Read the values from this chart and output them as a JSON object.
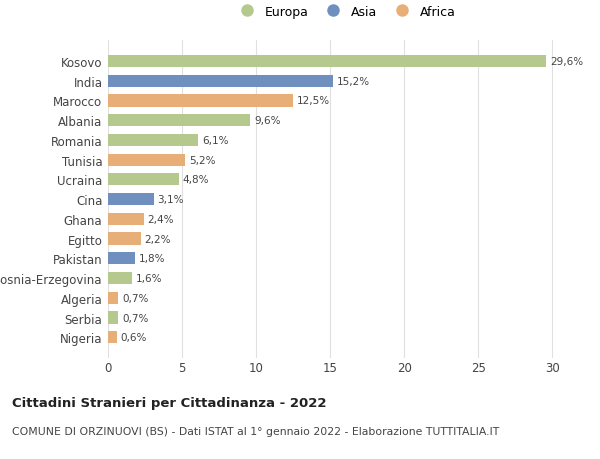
{
  "countries": [
    "Kosovo",
    "India",
    "Marocco",
    "Albania",
    "Romania",
    "Tunisia",
    "Ucraina",
    "Cina",
    "Ghana",
    "Egitto",
    "Pakistan",
    "Bosnia-Erzegovina",
    "Algeria",
    "Serbia",
    "Nigeria"
  ],
  "values": [
    29.6,
    15.2,
    12.5,
    9.6,
    6.1,
    5.2,
    4.8,
    3.1,
    2.4,
    2.2,
    1.8,
    1.6,
    0.7,
    0.7,
    0.6
  ],
  "continents": [
    "Europa",
    "Asia",
    "Africa",
    "Europa",
    "Europa",
    "Africa",
    "Europa",
    "Asia",
    "Africa",
    "Africa",
    "Asia",
    "Europa",
    "Africa",
    "Europa",
    "Africa"
  ],
  "colors": {
    "Europa": "#b5c98e",
    "Asia": "#6f8fbe",
    "Africa": "#e8ae78"
  },
  "legend_labels": [
    "Europa",
    "Asia",
    "Africa"
  ],
  "title": "Cittadini Stranieri per Cittadinanza - 2022",
  "subtitle": "COMUNE DI ORZINUOVI (BS) - Dati ISTAT al 1° gennaio 2022 - Elaborazione TUTTITALIA.IT",
  "xlim": [
    0,
    32
  ],
  "xticks": [
    0,
    5,
    10,
    15,
    20,
    25,
    30
  ],
  "background_color": "#ffffff",
  "grid_color": "#e0e0e0",
  "bar_height": 0.62
}
